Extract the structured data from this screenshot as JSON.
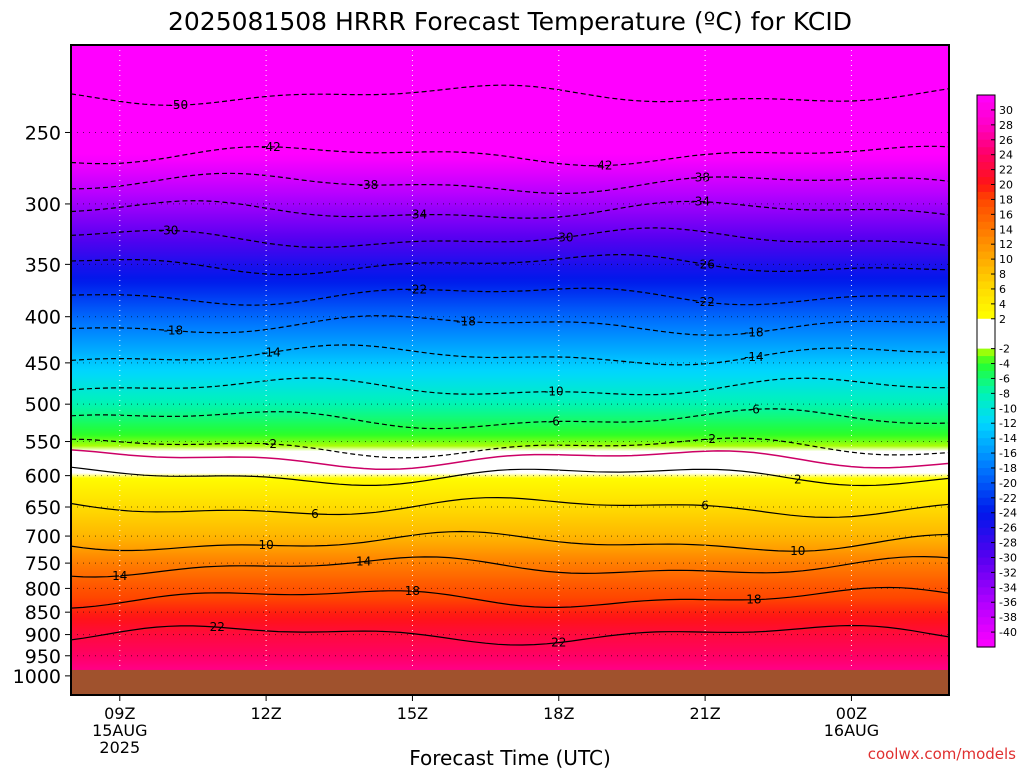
{
  "chart_data": {
    "type": "heatmap",
    "title": "2025081508 HRRR Forecast Temperature (ºC) for KCID",
    "xlabel": "Forecast Time (UTC)",
    "ylabel": "",
    "x_tick_labels": [
      [
        "09Z",
        "15AUG",
        "2025"
      ],
      [
        "12Z"
      ],
      [
        "15Z"
      ],
      [
        "18Z"
      ],
      [
        "21Z"
      ],
      [
        "00Z",
        "16AUG"
      ]
    ],
    "x_tick_hours": [
      9,
      12,
      15,
      18,
      21,
      24
    ],
    "xlim_hours": [
      8,
      26
    ],
    "y_ticks_hpa": [
      250,
      300,
      350,
      400,
      450,
      500,
      550,
      600,
      650,
      700,
      750,
      800,
      850,
      900,
      950,
      1000
    ],
    "ylim_hpa": [
      200,
      1050
    ],
    "y_scale": "log",
    "surface_pressure_hpa": 985,
    "colorbar": {
      "labels": [
        30,
        28,
        26,
        24,
        22,
        20,
        18,
        16,
        14,
        12,
        10,
        8,
        6,
        4,
        2,
        -2,
        -4,
        -6,
        -8,
        -10,
        -12,
        -14,
        -16,
        -18,
        -20,
        -22,
        -24,
        -26,
        -28,
        -30,
        -32,
        -34,
        -36,
        -38,
        -40
      ],
      "range": [
        -42,
        32
      ]
    },
    "contours": [
      {
        "value": -50,
        "label": "-50",
        "label_positions_hours": [
          10.2
        ]
      },
      {
        "value": -42,
        "label": "-42",
        "label_positions_hours": [
          12.1,
          18.9
        ]
      },
      {
        "value": -38,
        "label": "-38",
        "label_positions_hours": [
          14.1,
          20.9
        ]
      },
      {
        "value": -34,
        "label": "-34",
        "label_positions_hours": [
          15.1,
          20.9
        ]
      },
      {
        "value": -30,
        "label": "-30",
        "label_positions_hours": [
          10.0,
          18.1
        ]
      },
      {
        "value": -26,
        "label": "-26",
        "label_positions_hours": [
          21.0
        ]
      },
      {
        "value": -22,
        "label": "-22",
        "label_positions_hours": [
          15.1,
          21.0
        ]
      },
      {
        "value": -18,
        "label": "-18",
        "label_positions_hours": [
          10.1,
          16.1,
          22.0
        ]
      },
      {
        "value": -14,
        "label": "-14",
        "label_positions_hours": [
          12.1,
          22.0
        ]
      },
      {
        "value": -10,
        "label": "-10",
        "label_positions_hours": [
          17.9
        ]
      },
      {
        "value": -6,
        "label": "-6",
        "label_positions_hours": [
          17.9,
          22.0
        ]
      },
      {
        "value": -2,
        "label": "-2",
        "label_positions_hours": [
          12.1,
          21.1
        ]
      },
      {
        "value": 2,
        "label": "2",
        "label_positions_hours": [
          22.9
        ]
      },
      {
        "value": 6,
        "label": "6",
        "label_positions_hours": [
          13.0,
          21.0
        ]
      },
      {
        "value": 10,
        "label": "10",
        "label_positions_hours": [
          12.0,
          22.9
        ]
      },
      {
        "value": 14,
        "label": "14",
        "label_positions_hours": [
          9.0,
          14.0
        ]
      },
      {
        "value": 18,
        "label": "18",
        "label_positions_hours": [
          15.0,
          22.0
        ]
      },
      {
        "value": 22,
        "label": "22",
        "label_positions_hours": [
          11.0,
          18.0
        ]
      }
    ],
    "temperature_profile": [
      {
        "p": 200,
        "t": -56
      },
      {
        "p": 250,
        "t": -45
      },
      {
        "p": 300,
        "t": -35
      },
      {
        "p": 350,
        "t": -26
      },
      {
        "p": 400,
        "t": -19
      },
      {
        "p": 450,
        "t": -13
      },
      {
        "p": 500,
        "t": -8
      },
      {
        "p": 550,
        "t": -3
      },
      {
        "p": 575,
        "t": 0
      },
      {
        "p": 600,
        "t": 2
      },
      {
        "p": 650,
        "t": 6
      },
      {
        "p": 700,
        "t": 9
      },
      {
        "p": 750,
        "t": 13.5
      },
      {
        "p": 800,
        "t": 17
      },
      {
        "p": 850,
        "t": 19.5
      },
      {
        "p": 900,
        "t": 22
      },
      {
        "p": 950,
        "t": 24
      },
      {
        "p": 1000,
        "t": 26
      }
    ],
    "grid": true,
    "colors": {
      "background": "#ffffff",
      "surface": "#a0522d",
      "text": "#000000",
      "freezing_line": "#cc0066"
    }
  },
  "watermark": "coolwx.com/models"
}
